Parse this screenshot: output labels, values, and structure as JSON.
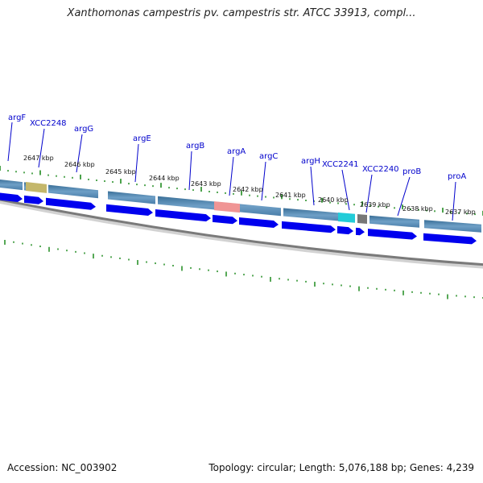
{
  "title": "Xanthomonas campestris pv. campestris str. ATCC 33913, compl...",
  "accession": "Accession: NC_003902",
  "footer_info": "Topology: circular; Length: 5,076,188 bp; Genes: 4,239",
  "colors": {
    "cds_forward": "#0000ee",
    "feature_bar": "#4a80ab",
    "highlight_olive": "#c4b76b",
    "highlight_salmon": "#f09595",
    "highlight_cyan": "#22ccd8",
    "highlight_gray": "#777777",
    "tick": "#1e8a1e",
    "backbone": "#777777",
    "gene_label": "#0000cc"
  },
  "gene_labels": [
    "argF",
    "XCC2248",
    "argG",
    "argE",
    "argB",
    "argA",
    "argC",
    "argH",
    "XCC2241",
    "XCC2240",
    "proB",
    "proA"
  ],
  "kbp_labels": [
    "2647 kbp",
    "2646 kbp",
    "2645 kbp",
    "2644 kbp",
    "2643 kbp",
    "2642 kbp",
    "2641 kbp",
    "2640 kbp",
    "2639 kbp",
    "2638 kbp",
    "2637 kbp"
  ]
}
